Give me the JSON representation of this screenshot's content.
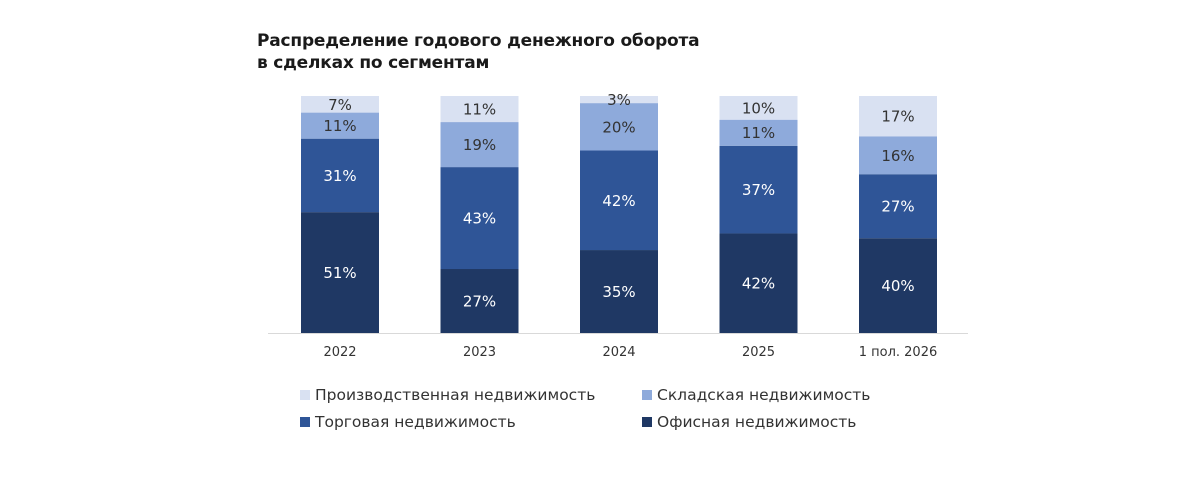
{
  "colors": {
    "production": "#d9e1f2",
    "warehouse": "#8eaadb",
    "retail": "#2f5597",
    "office": "#1f3864",
    "axis": "#d9d9d9",
    "tick_text": "#333333"
  },
  "chart_data": {
    "type": "bar",
    "stacked": true,
    "title": [
      "Распределение годового денежного оборота",
      "в сделках по сегментам"
    ],
    "categories": [
      "2022",
      "2023",
      "2024",
      "2025",
      "1 пол. 2026"
    ],
    "series": [
      {
        "name": "Офисная недвижимость",
        "key": "office",
        "values": [
          51,
          27,
          35,
          42,
          40
        ]
      },
      {
        "name": "Торговая недвижимость",
        "key": "retail",
        "values": [
          31,
          43,
          42,
          37,
          27
        ]
      },
      {
        "name": "Складская недвижимость",
        "key": "warehouse",
        "values": [
          11,
          19,
          20,
          11,
          16
        ]
      },
      {
        "name": "Производственная недвижимость",
        "key": "production",
        "values": [
          7,
          11,
          3,
          10,
          17
        ]
      }
    ],
    "value_suffix": "%",
    "ylim": [
      0,
      100
    ],
    "grid": false,
    "legend_position": "bottom"
  },
  "legend": [
    {
      "label": "Производственная недвижимость",
      "key": "production"
    },
    {
      "label": "Складская недвижимость",
      "key": "warehouse"
    },
    {
      "label": "Торговая недвижимость",
      "key": "retail"
    },
    {
      "label": "Офисная недвижимость",
      "key": "office"
    }
  ]
}
